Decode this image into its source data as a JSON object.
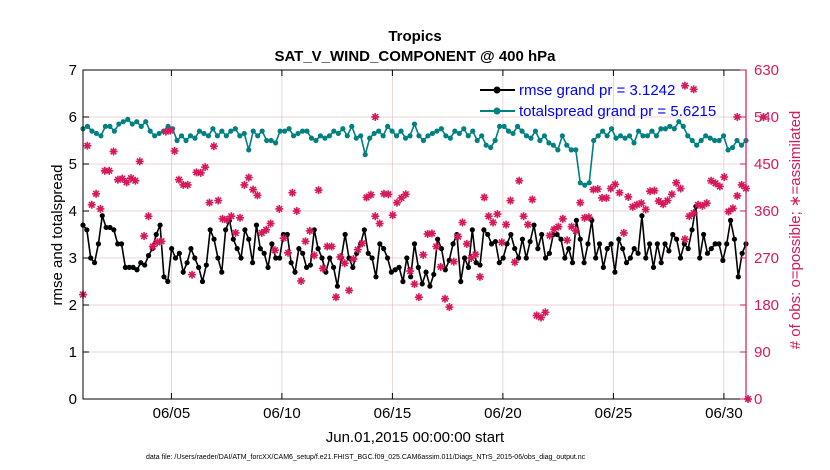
{
  "chart_data": {
    "type": "line",
    "title": "Tropics",
    "subtitle": "SAT_V_WIND_COMPONENT @ 400 hPa",
    "xlabel": "Jun.01,2015 00:00:00 start",
    "ylabel_left": "rmse and totalspread",
    "ylabel_right": "# of obs: o=possible; ∗=assimilated",
    "footnote": "data file: /Users/raeder/DAI/ATM_forcXX/CAM6_setup/f.e21.FHIST_BGC.f09_025.CAM6assim.011/Diags_NTrS_2015-06/obs_diag_output.nc",
    "xlim": [
      1,
      31
    ],
    "ylim_left": [
      0,
      7
    ],
    "ylim_right": [
      0,
      630
    ],
    "x_ticks": [
      5,
      10,
      15,
      20,
      25,
      30
    ],
    "x_tick_labels": [
      "06/05",
      "06/10",
      "06/15",
      "06/20",
      "06/25",
      "06/30"
    ],
    "y_ticks_left": [
      "0",
      "1",
      "2",
      "3",
      "4",
      "5",
      "6",
      "7"
    ],
    "y_ticks_right": [
      "0",
      "90",
      "180",
      "270",
      "360",
      "450",
      "540",
      "630"
    ],
    "grid": true,
    "legend": {
      "position": "top-right",
      "entries": [
        "rmse grand pr = 3.1242",
        "totalspread grand pr = 5.6215"
      ]
    },
    "colors": {
      "rmse": "#000000",
      "totalspread": "#008080",
      "obs": "#d6185c",
      "right_axis": "#d6185c",
      "legend_text": "#0000ff",
      "grid": "#e0c6c6"
    },
    "series": [
      {
        "name": "rmse",
        "axis": "left",
        "values": [
          3.7,
          3.6,
          3.0,
          2.9,
          3.3,
          3.9,
          3.65,
          3.65,
          3.6,
          3.3,
          3.3,
          2.8,
          2.8,
          2.8,
          2.75,
          2.9,
          2.85,
          3.05,
          3.2,
          3.5,
          3.7,
          2.6,
          2.5,
          3.2,
          3.0,
          3.1,
          2.7,
          2.9,
          3.2,
          3.0,
          2.8,
          2.5,
          2.85,
          3.6,
          3.4,
          3.0,
          2.7,
          3.6,
          3.8,
          3.4,
          3.2,
          3.0,
          3.6,
          3.4,
          2.9,
          3.7,
          3.2,
          3.1,
          2.8,
          3.3,
          3.0,
          3.0,
          3.5,
          3.5,
          2.9,
          2.7,
          3.2,
          3.1,
          2.8,
          2.85,
          3.6,
          3.2,
          3.0,
          2.7,
          3.0,
          2.8,
          2.4,
          3.0,
          3.5,
          3.0,
          2.8,
          3.1,
          3.3,
          3.6,
          3.1,
          3.0,
          2.6,
          3.3,
          3.2,
          3.0,
          2.7,
          2.75,
          2.8,
          2.5,
          3.0,
          2.6,
          3.3,
          2.8,
          2.45,
          2.7,
          2.4,
          2.65,
          3.4,
          3.2,
          2.75,
          2.95,
          3.3,
          3.5,
          2.5,
          3.0,
          2.8,
          3.6,
          2.9,
          2.85,
          3.6,
          3.5,
          3.3,
          3.35,
          2.9,
          3.0,
          3.3,
          3.5,
          3.2,
          3.0,
          3.4,
          3.0,
          3.35,
          3.7,
          3.2,
          3.5,
          3.0,
          3.1,
          3.5,
          3.5,
          3.4,
          3.0,
          3.2,
          2.9,
          3.8,
          3.4,
          2.9,
          3.3,
          3.8,
          3.0,
          3.3,
          2.8,
          3.2,
          3.3,
          2.7,
          3.4,
          3.2,
          2.9,
          3.0,
          3.2,
          3.1,
          3.9,
          3.0,
          3.3,
          2.8,
          3.3,
          2.9,
          3.3,
          3.15,
          3.5,
          3.4,
          3.0,
          3.3,
          3.2,
          3.6,
          4.1,
          3.0,
          3.5,
          3.1,
          3.2,
          3.3,
          3.3,
          2.95,
          3.3,
          3.8,
          3.4,
          2.6,
          3.1,
          3.3
        ]
      },
      {
        "name": "totalspread",
        "axis": "left",
        "values": [
          5.75,
          5.8,
          5.7,
          5.65,
          5.6,
          5.8,
          5.8,
          5.7,
          5.85,
          5.9,
          5.95,
          5.85,
          5.9,
          5.8,
          5.9,
          5.7,
          5.6,
          5.65,
          5.7,
          5.8,
          5.75,
          5.5,
          5.6,
          5.5,
          5.6,
          5.55,
          5.7,
          5.65,
          5.6,
          5.75,
          5.6,
          5.7,
          5.6,
          5.7,
          5.75,
          5.6,
          5.65,
          5.3,
          5.7,
          5.6,
          5.7,
          5.5,
          5.5,
          5.45,
          5.7,
          5.7,
          5.75,
          5.6,
          5.65,
          5.7,
          5.7,
          5.55,
          5.5,
          5.6,
          5.55,
          5.6,
          5.7,
          5.65,
          5.75,
          5.6,
          5.8,
          5.55,
          5.6,
          5.2,
          5.55,
          5.65,
          5.7,
          5.6,
          5.8,
          5.7,
          5.6,
          5.7,
          5.55,
          5.6,
          5.85,
          5.6,
          5.5,
          5.6,
          5.65,
          5.7,
          5.75,
          5.6,
          5.55,
          5.7,
          5.65,
          5.75,
          5.6,
          5.7,
          5.5,
          5.6,
          5.4,
          5.35,
          5.5,
          5.8,
          5.8,
          5.7,
          5.65,
          5.8,
          5.7,
          5.6,
          5.55,
          5.7,
          5.5,
          5.6,
          5.45,
          5.4,
          5.3,
          5.6,
          5.4,
          5.3,
          5.3,
          4.6,
          4.55,
          4.6,
          5.5,
          5.6,
          5.7,
          5.6,
          5.75,
          5.55,
          5.6,
          5.55,
          5.6,
          5.45,
          5.7,
          5.6,
          5.6,
          5.7,
          5.6,
          5.75,
          5.75,
          5.8,
          5.75,
          5.9,
          5.8,
          5.6,
          5.5,
          5.4,
          5.5,
          5.6,
          5.55,
          5.5,
          5.5,
          5.6,
          5.3,
          5.35,
          5.5,
          5.4,
          5.5
        ]
      },
      {
        "name": "obs_assimilated",
        "axis": "right",
        "marker": "asterisk",
        "values": [
          200,
          485,
          372,
          393,
          364,
          437,
          437,
          474,
          420,
          422,
          415,
          423,
          418,
          455,
          312,
          350,
          292,
          300,
          302,
          512,
          514,
          475,
          420,
          410,
          410,
          238,
          434,
          433,
          444,
          376,
          484,
          380,
          345,
          343,
          350,
          318,
          347,
          410,
          424,
          401,
          390,
          318,
          324,
          336,
          285,
          364,
          308,
          280,
          395,
          360,
          226,
          302,
          322,
          275,
          400,
          250,
          292,
          292,
          195,
          272,
          260,
          208,
          268,
          286,
          298,
          386,
          391,
          350,
          336,
          393,
          392,
          352,
          376,
          385,
          392,
          245,
          220,
          195,
          276,
          316,
          317,
          292,
          253,
          192,
          176,
          263,
          311,
          338,
          297,
          270,
          277,
          234,
          386,
          350,
          338,
          354,
          300,
          334,
          380,
          262,
          418,
          350,
          334,
          382,
          160,
          156,
          166,
          313,
          325,
          330,
          345,
          304,
          330,
          322,
          376,
          347,
          348,
          401,
          402,
          385,
          385,
          403,
          411,
          395,
          318,
          387,
          368,
          372,
          375,
          363,
          398,
          399,
          379,
          373,
          380,
          392,
          414,
          403,
          306,
          350,
          356,
          372,
          370,
          375,
          418,
          413,
          407,
          425,
          359,
          365,
          389,
          410,
          403
        ]
      }
    ],
    "obs_spikes": [
      {
        "x_index": 67,
        "value": 540
      },
      {
        "x_index": 138,
        "value": 600
      },
      {
        "x_index": 140,
        "value": 593
      },
      {
        "x_index": 150,
        "value": 540
      },
      {
        "x_index": 156,
        "value": 540
      }
    ]
  }
}
